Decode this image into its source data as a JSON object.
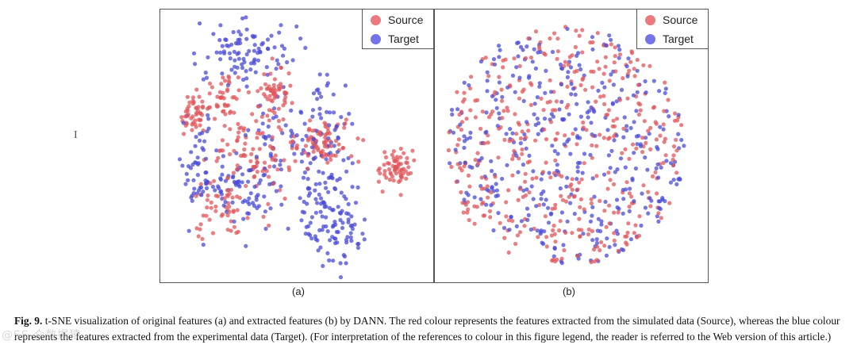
{
  "colors": {
    "source": "#e0555a",
    "target": "#4a4ad6",
    "source_legend": "#ea7a7e",
    "target_legend": "#7474e8"
  },
  "legend": {
    "source_label": "Source",
    "target_label": "Target"
  },
  "caption": {
    "fig_label": "Fig. 9.",
    "text": " t-SNE visualization of original features (a) and extracted features (b) by DANN. The red colour represents the features extracted from the simulated data (Source), whereas the blue colour represents the features extracted from the experimental data (Target). (For interpretation of the references to colour in this figure legend, the reader is referred to the Web version of this article.)"
  },
  "cursor_glyph": "I",
  "watermark": "@SS 众数据猿",
  "chart_data": [
    {
      "type": "scatter",
      "subplot_label": "(a)",
      "title": "",
      "xlabel": "",
      "ylabel": "",
      "xlim": [
        0,
        100
      ],
      "ylim": [
        0,
        100
      ],
      "grid": false,
      "legend_position": "top-right",
      "series": [
        {
          "name": "Source",
          "clusters": [
            {
              "cx": 10,
              "cy": 62,
              "sx": 3,
              "sy": 4,
              "n": 45
            },
            {
              "cx": 22,
              "cy": 70,
              "sx": 4,
              "sy": 5,
              "n": 45
            },
            {
              "cx": 42,
              "cy": 70,
              "sx": 3,
              "sy": 5,
              "n": 55
            },
            {
              "cx": 32,
              "cy": 45,
              "sx": 8,
              "sy": 8,
              "n": 90
            },
            {
              "cx": 20,
              "cy": 25,
              "sx": 5,
              "sy": 5,
              "n": 45
            },
            {
              "cx": 60,
              "cy": 52,
              "sx": 7,
              "sy": 4,
              "n": 80
            },
            {
              "cx": 88,
              "cy": 42,
              "sx": 3,
              "sy": 4,
              "n": 65
            }
          ]
        },
        {
          "name": "Target",
          "clusters": [
            {
              "cx": 30,
              "cy": 86,
              "sx": 9,
              "sy": 6,
              "n": 95
            },
            {
              "cx": 12,
              "cy": 42,
              "sx": 4,
              "sy": 10,
              "n": 55
            },
            {
              "cx": 30,
              "cy": 33,
              "sx": 8,
              "sy": 7,
              "n": 70
            },
            {
              "cx": 60,
              "cy": 58,
              "sx": 6,
              "sy": 12,
              "n": 70
            },
            {
              "cx": 62,
              "cy": 30,
              "sx": 7,
              "sy": 8,
              "n": 65
            },
            {
              "cx": 65,
              "cy": 15,
              "sx": 5,
              "sy": 6,
              "n": 55
            },
            {
              "cx": 42,
              "cy": 55,
              "sx": 6,
              "sy": 8,
              "n": 35
            }
          ]
        }
      ]
    },
    {
      "type": "scatter",
      "subplot_label": "(b)",
      "title": "",
      "xlabel": "",
      "ylabel": "",
      "xlim": [
        0,
        100
      ],
      "ylim": [
        0,
        100
      ],
      "grid": false,
      "legend_position": "top-right",
      "series": [
        {
          "name": "Source",
          "disc": {
            "cx": 47,
            "cy": 50,
            "r": 46,
            "n": 420
          }
        },
        {
          "name": "Target",
          "disc": {
            "cx": 47,
            "cy": 50,
            "r": 46,
            "n": 390
          }
        }
      ]
    }
  ]
}
